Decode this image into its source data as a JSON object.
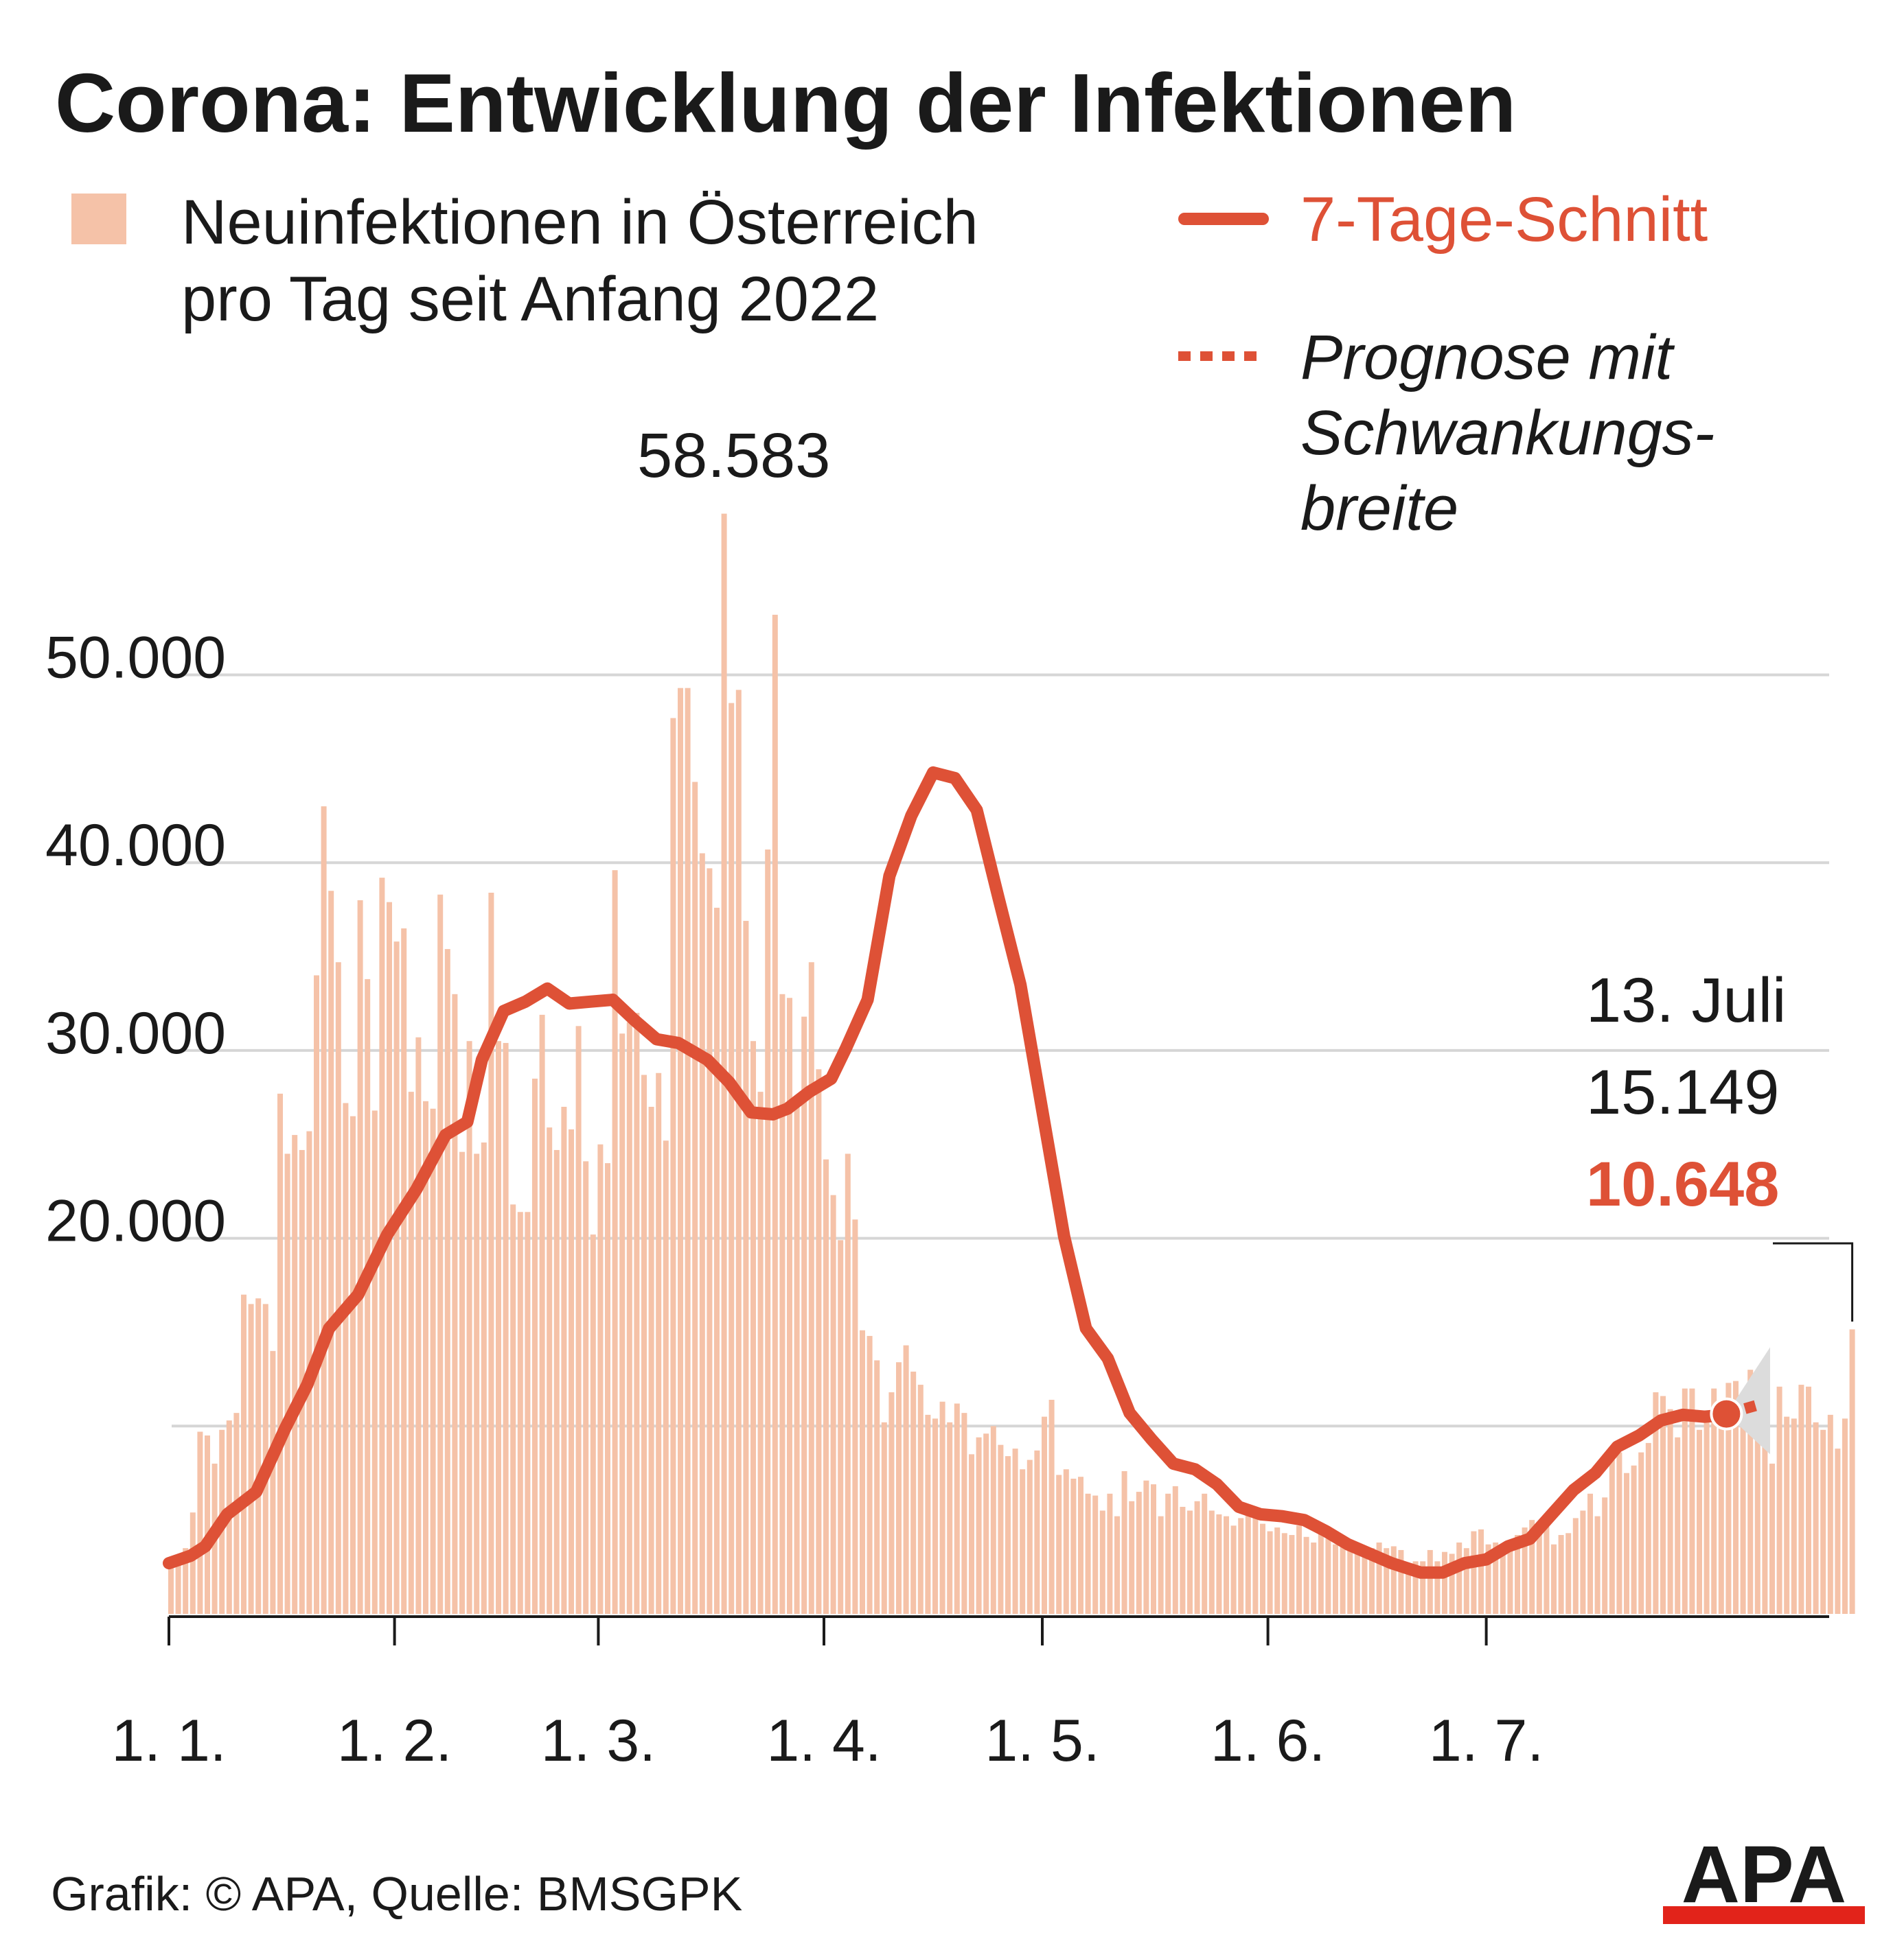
{
  "title": "Corona: Entwicklung der Infektionen",
  "legend": {
    "bars_line1": "Neuinfektionen in Österreich",
    "bars_line2": "pro Tag seit Anfang 2022",
    "avg": "7-Tage-Schnitt",
    "forecast_line1": "Prognose mit",
    "forecast_line2": "Schwankungs-",
    "forecast_line3": "breite"
  },
  "annotations": {
    "peak": "58.583",
    "last_date": "13. Juli",
    "last_value": "15.149",
    "last_avg": "10.648"
  },
  "source": "Grafik: © APA, Quelle: BMSGPK",
  "logo_text": "APA",
  "colors": {
    "bars": "#f5c2a8",
    "avg": "#de5136",
    "band": "#dcdcdc",
    "grid": "#d6d6d6",
    "logo_red": "#e2231a"
  },
  "chart_data": {
    "type": "bar",
    "ylim": [
      0,
      60000
    ],
    "y_ticks": [
      20000,
      30000,
      40000,
      50000
    ],
    "y_tick_labels": [
      "20.000",
      "30.000",
      "40.000",
      "50.000"
    ],
    "x_ticks": [
      "2022-01-01",
      "2022-02-01",
      "2022-03-01",
      "2022-04-01",
      "2022-05-01",
      "2022-06-01",
      "2022-07-01"
    ],
    "x_tick_labels": [
      "1. 1.",
      "1. 2.",
      "1. 3.",
      "1. 4.",
      "1. 5.",
      "1. 6.",
      "1. 7."
    ],
    "series": [
      {
        "name": "Neuinfektionen in Österreich pro Tag seit Anfang 2022",
        "type": "bar",
        "start_date": "2022-01-01",
        "values": [
          2700,
          3000,
          3500,
          5400,
          9700,
          9500,
          8000,
          9800,
          10300,
          10700,
          17000,
          16500,
          16800,
          16500,
          14000,
          27700,
          24500,
          25500,
          24700,
          25700,
          34000,
          43000,
          38500,
          34700,
          27200,
          26500,
          38000,
          33800,
          26800,
          39200,
          37900,
          35800,
          36500,
          27800,
          30700,
          27300,
          26900,
          38300,
          35400,
          33000,
          24600,
          30500,
          24500,
          25100,
          38400,
          30500,
          30400,
          21800,
          21400,
          21400,
          28500,
          31900,
          25900,
          24700,
          27000,
          25800,
          31300,
          24100,
          20200,
          25000,
          24000,
          39600,
          30900,
          31500,
          32000,
          28700,
          27000,
          28800,
          25200,
          47700,
          49300,
          49300,
          44300,
          40500,
          39700,
          37600,
          58583,
          48500,
          49200,
          36900,
          30500,
          27800,
          40700,
          53200,
          33000,
          32800,
          27100,
          31800,
          34700,
          29000,
          24200,
          22300,
          19900,
          24500,
          21000,
          15100,
          14800,
          13500,
          10200,
          11800,
          13400,
          14300,
          12900,
          12200,
          10600,
          10400,
          11300,
          10200,
          11200,
          10700,
          8500,
          9400,
          9600,
          10000,
          9000,
          8400,
          8800,
          7700,
          8200,
          8700,
          10500,
          11400,
          7400,
          7700,
          7200,
          7300,
          6400,
          6300,
          5500,
          6400,
          5200,
          7600,
          6000,
          6500,
          7100,
          6900,
          5200,
          6400,
          6800,
          5700,
          5500,
          6000,
          6400,
          5500,
          5300,
          5200,
          4700,
          5100,
          5400,
          5600,
          4800,
          4400,
          4600,
          4300,
          4200,
          4700,
          4100,
          3800,
          4700,
          4000,
          3700,
          4000,
          3600,
          3200,
          3100,
          3500,
          3800,
          3500,
          3600,
          3400,
          2200,
          2800,
          2800,
          3400,
          2800,
          3300,
          3200,
          3800,
          3500,
          4400,
          4500,
          3700,
          3800,
          3200,
          3900,
          4200,
          4600,
          5000,
          4300,
          4900,
          3700,
          4200,
          4300,
          5100,
          5500,
          6400,
          5200,
          6200,
          8200,
          8600,
          7500,
          7900,
          8600,
          9100,
          11800,
          11600,
          10900,
          9400,
          12000,
          12000,
          9800,
          10800,
          12000,
          11400,
          12300,
          12400,
          10000,
          13000,
          10600,
          12000,
          8000,
          12100,
          10500,
          10400,
          12200,
          12100,
          10200,
          9800,
          10600,
          8800,
          10400,
          15149
        ]
      },
      {
        "name": "7-Tage-Schnitt",
        "type": "line",
        "start_date": "2022-01-01",
        "points": [
          [
            "2022-01-01",
            2700
          ],
          [
            "2022-01-04",
            3100
          ],
          [
            "2022-01-06",
            3600
          ],
          [
            "2022-01-09",
            5300
          ],
          [
            "2022-01-13",
            6500
          ],
          [
            "2022-01-17",
            9900
          ],
          [
            "2022-01-20",
            12200
          ],
          [
            "2022-01-23",
            15200
          ],
          [
            "2022-01-27",
            17000
          ],
          [
            "2022-01-31",
            20200
          ],
          [
            "2022-02-04",
            22600
          ],
          [
            "2022-02-08",
            25500
          ],
          [
            "2022-02-11",
            26200
          ],
          [
            "2022-02-13",
            29500
          ],
          [
            "2022-02-16",
            32100
          ],
          [
            "2022-02-19",
            32600
          ],
          [
            "2022-02-22",
            33300
          ],
          [
            "2022-02-25",
            32500
          ],
          [
            "2022-02-28",
            32600
          ],
          [
            "2022-03-03",
            32700
          ],
          [
            "2022-03-06",
            31600
          ],
          [
            "2022-03-09",
            30600
          ],
          [
            "2022-03-12",
            30400
          ],
          [
            "2022-03-16",
            29500
          ],
          [
            "2022-03-19",
            28300
          ],
          [
            "2022-03-22",
            26700
          ],
          [
            "2022-03-25",
            26600
          ],
          [
            "2022-03-27",
            26900
          ],
          [
            "2022-03-30",
            27800
          ],
          [
            "2022-04-02",
            28500
          ],
          [
            "2022-04-04",
            30100
          ],
          [
            "2022-04-07",
            32700
          ],
          [
            "2022-04-10",
            39300
          ],
          [
            "2022-04-13",
            42500
          ],
          [
            "2022-04-16",
            44800
          ],
          [
            "2022-04-19",
            44500
          ],
          [
            "2022-04-22",
            42800
          ],
          [
            "2022-04-25",
            38100
          ],
          [
            "2022-04-28",
            33500
          ],
          [
            "2022-05-01",
            26800
          ],
          [
            "2022-05-04",
            20100
          ],
          [
            "2022-05-07",
            15200
          ],
          [
            "2022-05-10",
            13600
          ],
          [
            "2022-05-13",
            10700
          ],
          [
            "2022-05-16",
            9300
          ],
          [
            "2022-05-19",
            8000
          ],
          [
            "2022-05-22",
            7700
          ],
          [
            "2022-05-25",
            6900
          ],
          [
            "2022-05-28",
            5700
          ],
          [
            "2022-05-31",
            5300
          ],
          [
            "2022-06-03",
            5200
          ],
          [
            "2022-06-06",
            5000
          ],
          [
            "2022-06-09",
            4400
          ],
          [
            "2022-06-12",
            3700
          ],
          [
            "2022-06-15",
            3200
          ],
          [
            "2022-06-18",
            2700
          ],
          [
            "2022-06-22",
            2200
          ],
          [
            "2022-06-25",
            2200
          ],
          [
            "2022-06-28",
            2700
          ],
          [
            "2022-07-01",
            2900
          ],
          [
            "2022-07-04",
            3600
          ],
          [
            "2022-07-07",
            4000
          ],
          [
            "2022-07-10",
            5300
          ],
          [
            "2022-07-13",
            6600
          ],
          [
            "2022-07-16",
            7500
          ],
          [
            "2022-07-19",
            8900
          ],
          [
            "2022-07-22",
            9500
          ],
          [
            "2022-07-25",
            10300
          ],
          [
            "2022-07-28",
            10600
          ],
          [
            "2022-07-31",
            10500
          ],
          [
            "2022-08-03",
            10600
          ]
        ]
      },
      {
        "name": "Prognose mit Schwankungsbreite",
        "type": "forecast",
        "points": [
          [
            "2022-08-03",
            10648
          ],
          [
            "2022-08-08",
            11200
          ]
        ],
        "band": {
          "start": [
            "2022-08-03",
            10648
          ],
          "end_low": 8500,
          "end_high": 14200,
          "end_date": "2022-08-09"
        }
      }
    ]
  }
}
